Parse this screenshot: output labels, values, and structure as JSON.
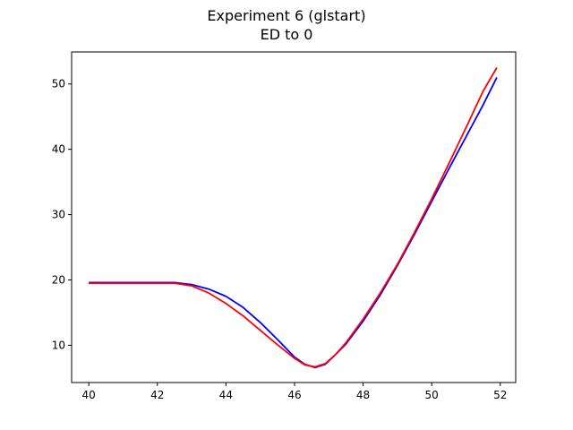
{
  "chart_data": {
    "type": "line",
    "title": "Experiment 6 (glstart)",
    "subtitle": "ED to 0",
    "xlabel": "",
    "ylabel": "",
    "xlim": [
      39.5,
      52.45
    ],
    "ylim": [
      4.3,
      54.9
    ],
    "xticks": [
      40,
      42,
      44,
      46,
      48,
      50,
      52
    ],
    "yticks": [
      10,
      20,
      30,
      40,
      50
    ],
    "grid": false,
    "series": [
      {
        "color": "#0000ff",
        "x": [
          40,
          41,
          42,
          42.5,
          43,
          43.5,
          44,
          44.5,
          45,
          45.5,
          46,
          46.3,
          46.6,
          46.9,
          47.2,
          47.5,
          48,
          48.5,
          49,
          49.5,
          50,
          50.5,
          51,
          51.5,
          51.9
        ],
        "y": [
          19.6,
          19.6,
          19.6,
          19.6,
          19.3,
          18.6,
          17.5,
          15.8,
          13.5,
          10.9,
          8.2,
          7.1,
          6.6,
          7.1,
          8.6,
          10.2,
          13.7,
          17.7,
          22.2,
          27.0,
          32.0,
          37.0,
          41.9,
          46.8,
          51.0
        ]
      },
      {
        "color": "#ff0000",
        "x": [
          40,
          41,
          42,
          42.5,
          43,
          43.5,
          44,
          44.5,
          45,
          45.5,
          46,
          46.3,
          46.6,
          46.9,
          47.2,
          47.5,
          48,
          48.5,
          49,
          49.5,
          50,
          50.5,
          51,
          51.5,
          51.9
        ],
        "y": [
          19.5,
          19.5,
          19.5,
          19.5,
          19.1,
          18.0,
          16.4,
          14.5,
          12.3,
          10.1,
          8.0,
          7.0,
          6.7,
          7.2,
          8.6,
          10.4,
          14.0,
          18.0,
          22.4,
          27.3,
          32.4,
          37.8,
          43.3,
          48.9,
          52.5
        ]
      }
    ]
  }
}
